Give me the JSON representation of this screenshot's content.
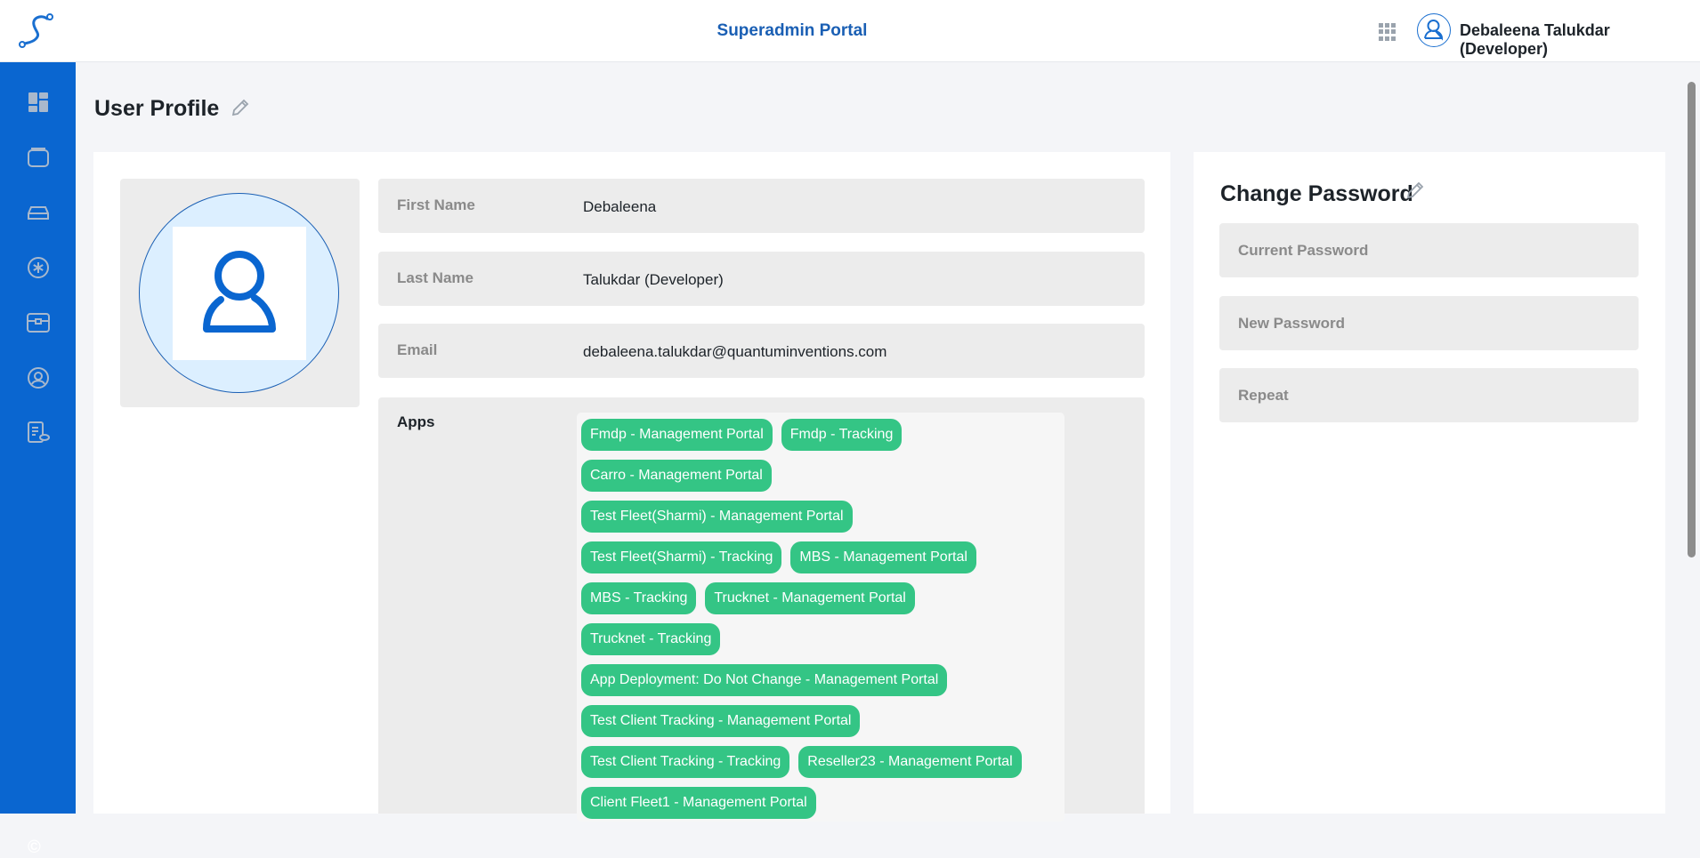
{
  "header": {
    "title": "Superadmin Portal",
    "user_name": "Debaleena Talukdar (Developer)",
    "accent": "#0a66d0"
  },
  "sidebar": {
    "items": [
      {
        "icon": "dashboard-icon"
      },
      {
        "icon": "window-icon"
      },
      {
        "icon": "car-icon"
      },
      {
        "icon": "snowflake-icon"
      },
      {
        "icon": "toolbox-icon"
      },
      {
        "icon": "user-circle-icon"
      },
      {
        "icon": "report-icon"
      }
    ],
    "footer": "©"
  },
  "page": {
    "title": "User Profile"
  },
  "profile": {
    "first_name_label": "First Name",
    "first_name": "Debaleena",
    "last_name_label": "Last Name",
    "last_name": "Talukdar (Developer)",
    "email_label": "Email",
    "email": "debaleena.talukdar@quantuminventions.com",
    "apps_label": "Apps",
    "app_rows": [
      [
        "Fmdp - Management Portal",
        "Fmdp - Tracking"
      ],
      [
        "Carro - Management Portal"
      ],
      [
        "Test Fleet(Sharmi) - Management Portal"
      ],
      [
        "Test Fleet(Sharmi) - Tracking",
        "MBS - Management Portal"
      ],
      [
        "MBS - Tracking",
        "Trucknet - Management Portal"
      ],
      [
        "Trucknet - Tracking"
      ],
      [
        "App Deployment: Do Not Change - Management Portal"
      ],
      [
        "Test Client Tracking - Management Portal"
      ],
      [
        "Test Client Tracking - Tracking",
        "Reseller23 - Management Portal"
      ],
      [
        "Client Fleet1 - Management Portal"
      ]
    ],
    "chip_color": "#34c585"
  },
  "password": {
    "title": "Change Password",
    "current_placeholder": "Current Password",
    "new_placeholder": "New Password",
    "repeat_placeholder": "Repeat"
  }
}
